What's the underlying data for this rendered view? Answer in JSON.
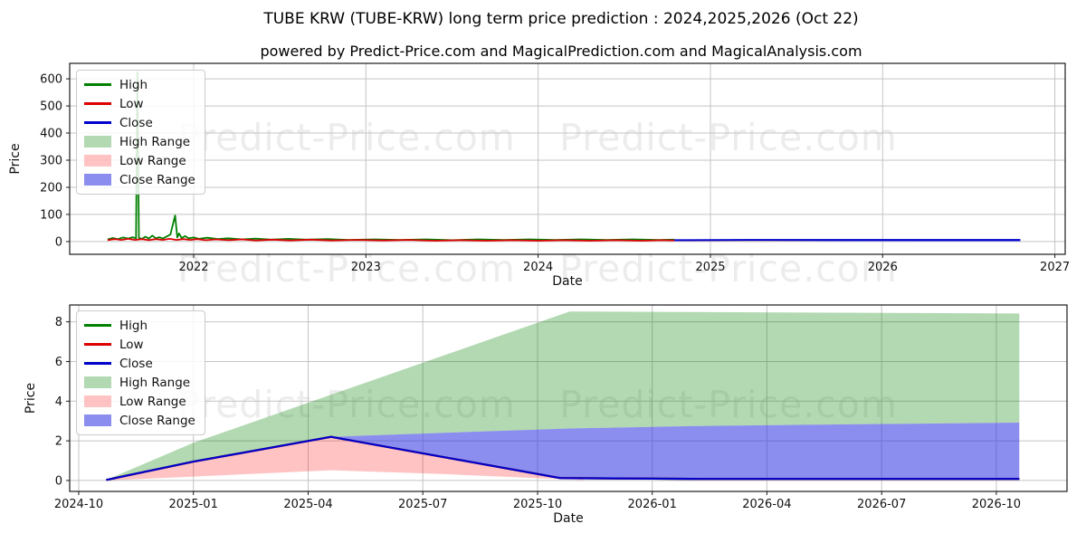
{
  "page": {
    "title": "TUBE KRW (TUBE-KRW) long term price prediction : 2024,2025,2026 (Oct 22)",
    "subtitle": "powered by Predict-Price.com and MagicalPrediction.com and MagicalAnalysis.com"
  },
  "watermark": {
    "text": "Predict-Price.com"
  },
  "colors": {
    "high": "#008000",
    "low": "#dd0000",
    "close": "#0000cd",
    "high_range": "rgba(0,128,0,0.30)",
    "low_range": "rgba(255,40,40,0.28)",
    "close_range": "rgba(45,50,225,0.55)",
    "grid": "#c4c4c4",
    "spine": "#1a1a1a"
  },
  "legend": [
    {
      "label": "High",
      "type": "line",
      "color": "#008000"
    },
    {
      "label": "Low",
      "type": "line",
      "color": "#dd0000"
    },
    {
      "label": "Close",
      "type": "line",
      "color": "#0000cd"
    },
    {
      "label": "High Range",
      "type": "patch",
      "color": "rgba(0,128,0,0.30)"
    },
    {
      "label": "Low Range",
      "type": "patch",
      "color": "rgba(255,40,40,0.28)"
    },
    {
      "label": "Close Range",
      "type": "patch",
      "color": "rgba(45,50,225,0.55)"
    }
  ],
  "chart_data": [
    {
      "type": "line",
      "name": "long-term-history-and-forecast",
      "xlabel": "Date",
      "ylabel": "Price",
      "xlim": [
        2021.28,
        2027.06
      ],
      "ylim": [
        -47,
        657
      ],
      "grid": true,
      "legend_position": "upper-left",
      "xticks": [
        {
          "v": 2022,
          "label": "2022"
        },
        {
          "v": 2023,
          "label": "2023"
        },
        {
          "v": 2024,
          "label": "2024"
        },
        {
          "v": 2025,
          "label": "2025"
        },
        {
          "v": 2026,
          "label": "2026"
        },
        {
          "v": 2027,
          "label": "2027"
        }
      ],
      "yticks": [
        {
          "v": 0,
          "label": "0"
        },
        {
          "v": 100,
          "label": "100"
        },
        {
          "v": 200,
          "label": "200"
        },
        {
          "v": 300,
          "label": "300"
        },
        {
          "v": 400,
          "label": "400"
        },
        {
          "v": 500,
          "label": "500"
        },
        {
          "v": 600,
          "label": "600"
        }
      ],
      "bands": [
        {
          "name": "High Range",
          "color": "rgba(0,128,0,0.30)",
          "upper": [
            [
              2024.81,
              1
            ],
            [
              2025.82,
              8.5
            ],
            [
              2026.8,
              8.4
            ]
          ],
          "lower": [
            [
              2024.81,
              1
            ],
            [
              2025.3,
              2.2
            ],
            [
              2025.78,
              2.6
            ],
            [
              2026.8,
              2.9
            ]
          ]
        },
        {
          "name": "Low Range",
          "color": "rgba(255,40,40,0.28)",
          "upper": [
            [
              2024.81,
              1
            ],
            [
              2025.3,
              2.2
            ],
            [
              2025.8,
              0.1
            ]
          ],
          "lower": [
            [
              2024.81,
              0
            ],
            [
              2025.3,
              0.5
            ],
            [
              2025.8,
              0
            ]
          ]
        },
        {
          "name": "Close Range",
          "color": "rgba(45,50,225,0.55)",
          "upper": [
            [
              2025.3,
              2.2
            ],
            [
              2025.78,
              2.6
            ],
            [
              2026.8,
              2.9
            ]
          ],
          "lower": [
            [
              2025.3,
              2.2
            ],
            [
              2025.8,
              0.1
            ],
            [
              2026.8,
              0.07
            ]
          ]
        }
      ],
      "series": [
        {
          "name": "High",
          "color": "#008000",
          "width": 1.8,
          "points": [
            [
              2021.5,
              8
            ],
            [
              2021.53,
              13
            ],
            [
              2021.56,
              9
            ],
            [
              2021.59,
              15
            ],
            [
              2021.62,
              11
            ],
            [
              2021.645,
              16
            ],
            [
              2021.665,
              12
            ],
            [
              2021.673,
              625
            ],
            [
              2021.682,
              13
            ],
            [
              2021.7,
              10
            ],
            [
              2021.72,
              18
            ],
            [
              2021.74,
              11
            ],
            [
              2021.76,
              22
            ],
            [
              2021.78,
              12
            ],
            [
              2021.8,
              16
            ],
            [
              2021.82,
              11
            ],
            [
              2021.845,
              19
            ],
            [
              2021.865,
              26
            ],
            [
              2021.892,
              96
            ],
            [
              2021.905,
              15
            ],
            [
              2021.915,
              30
            ],
            [
              2021.93,
              13
            ],
            [
              2021.95,
              20
            ],
            [
              2021.97,
              12
            ],
            [
              2022.0,
              15
            ],
            [
              2022.03,
              10
            ],
            [
              2022.08,
              14
            ],
            [
              2022.14,
              9
            ],
            [
              2022.2,
              12
            ],
            [
              2022.28,
              8
            ],
            [
              2022.36,
              11
            ],
            [
              2022.45,
              7
            ],
            [
              2022.55,
              10
            ],
            [
              2022.65,
              7
            ],
            [
              2022.78,
              9
            ],
            [
              2022.9,
              6
            ],
            [
              2023.05,
              8
            ],
            [
              2023.2,
              6
            ],
            [
              2023.35,
              8
            ],
            [
              2023.5,
              5
            ],
            [
              2023.65,
              8
            ],
            [
              2023.8,
              6
            ],
            [
              2023.95,
              8
            ],
            [
              2024.1,
              6
            ],
            [
              2024.25,
              8
            ],
            [
              2024.4,
              6
            ],
            [
              2024.55,
              8
            ],
            [
              2024.7,
              6
            ],
            [
              2024.79,
              7
            ]
          ]
        },
        {
          "name": "Low",
          "color": "#dd0000",
          "width": 1.8,
          "points": [
            [
              2021.5,
              5
            ],
            [
              2021.54,
              9
            ],
            [
              2021.58,
              6
            ],
            [
              2021.62,
              10
            ],
            [
              2021.66,
              6
            ],
            [
              2021.7,
              9
            ],
            [
              2021.74,
              5
            ],
            [
              2021.78,
              9
            ],
            [
              2021.82,
              6
            ],
            [
              2021.86,
              10
            ],
            [
              2021.9,
              6
            ],
            [
              2021.94,
              9
            ],
            [
              2021.98,
              6
            ],
            [
              2022.02,
              9
            ],
            [
              2022.07,
              5
            ],
            [
              2022.13,
              8
            ],
            [
              2022.2,
              5
            ],
            [
              2022.28,
              8
            ],
            [
              2022.36,
              4
            ],
            [
              2022.46,
              7
            ],
            [
              2022.56,
              4
            ],
            [
              2022.68,
              7
            ],
            [
              2022.8,
              4
            ],
            [
              2022.95,
              6
            ],
            [
              2023.1,
              4
            ],
            [
              2023.25,
              6
            ],
            [
              2023.4,
              3
            ],
            [
              2023.55,
              5
            ],
            [
              2023.7,
              3
            ],
            [
              2023.85,
              5
            ],
            [
              2024.0,
              3
            ],
            [
              2024.15,
              5
            ],
            [
              2024.3,
              3
            ],
            [
              2024.45,
              5
            ],
            [
              2024.6,
              3
            ],
            [
              2024.72,
              5
            ],
            [
              2024.79,
              4
            ]
          ]
        },
        {
          "name": "Close",
          "color": "#0000cd",
          "width": 2.0,
          "points": [
            [
              2024.79,
              5
            ],
            [
              2025.2,
              6
            ],
            [
              2026.0,
              6
            ],
            [
              2026.8,
              6
            ]
          ]
        }
      ]
    },
    {
      "type": "line",
      "name": "forecast-detail",
      "xlabel": "Date",
      "ylabel": "Price",
      "xlim": [
        2024.7303,
        2026.904
      ],
      "ylim": [
        -0.55,
        8.85
      ],
      "grid": true,
      "legend_position": "upper-left",
      "xticks": [
        {
          "v": 2024.75,
          "label": "2024-10"
        },
        {
          "v": 2025.0,
          "label": "2025-01"
        },
        {
          "v": 2025.25,
          "label": "2025-04"
        },
        {
          "v": 2025.5,
          "label": "2025-07"
        },
        {
          "v": 2025.75,
          "label": "2025-10"
        },
        {
          "v": 2026.0,
          "label": "2026-01"
        },
        {
          "v": 2026.25,
          "label": "2026-04"
        },
        {
          "v": 2026.5,
          "label": "2026-07"
        },
        {
          "v": 2026.75,
          "label": "2026-10"
        }
      ],
      "yticks": [
        {
          "v": 0,
          "label": "0"
        },
        {
          "v": 2,
          "label": "2"
        },
        {
          "v": 4,
          "label": "4"
        },
        {
          "v": 6,
          "label": "6"
        },
        {
          "v": 8,
          "label": "8"
        }
      ],
      "bands": [
        {
          "name": "High Range",
          "color": "rgba(0,128,0,0.30)",
          "upper": [
            [
              2024.81,
              0.03
            ],
            [
              2025.0,
              1.9
            ],
            [
              2025.82,
              8.52
            ],
            [
              2026.8,
              8.42
            ]
          ],
          "lower": [
            [
              2024.81,
              0.03
            ],
            [
              2025.0,
              0.95
            ],
            [
              2025.3,
              2.2
            ],
            [
              2025.6,
              2.45
            ],
            [
              2025.82,
              2.62
            ],
            [
              2026.1,
              2.75
            ],
            [
              2026.5,
              2.85
            ],
            [
              2026.8,
              2.92
            ]
          ]
        },
        {
          "name": "Low Range",
          "color": "rgba(255,40,40,0.28)",
          "upper": [
            [
              2024.81,
              0.03
            ],
            [
              2025.0,
              0.95
            ],
            [
              2025.3,
              2.2
            ],
            [
              2025.8,
              0.12
            ],
            [
              2025.85,
              0.08
            ]
          ],
          "lower": [
            [
              2024.81,
              0.0
            ],
            [
              2025.0,
              0.2
            ],
            [
              2025.3,
              0.52
            ],
            [
              2025.55,
              0.32
            ],
            [
              2025.85,
              0.02
            ]
          ]
        },
        {
          "name": "Close Range",
          "color": "rgba(45,50,225,0.55)",
          "upper": [
            [
              2025.3,
              2.2
            ],
            [
              2025.6,
              2.45
            ],
            [
              2025.82,
              2.62
            ],
            [
              2026.1,
              2.75
            ],
            [
              2026.5,
              2.85
            ],
            [
              2026.8,
              2.92
            ]
          ],
          "lower": [
            [
              2025.3,
              2.2
            ],
            [
              2025.8,
              0.12
            ],
            [
              2026.1,
              0.05
            ],
            [
              2026.8,
              0.05
            ]
          ]
        }
      ],
      "series": [
        {
          "name": "High",
          "color": "#008000",
          "width": 2.2,
          "points": [
            [
              2024.81,
              0.03
            ],
            [
              2025.0,
              0.95
            ],
            [
              2025.3,
              2.2
            ],
            [
              2025.8,
              0.12
            ],
            [
              2026.1,
              0.08
            ],
            [
              2026.8,
              0.08
            ]
          ]
        },
        {
          "name": "Low",
          "color": "#dd0000",
          "width": 2.2,
          "points": [
            [
              2024.81,
              0.03
            ],
            [
              2025.0,
              0.95
            ],
            [
              2025.3,
              2.2
            ],
            [
              2025.8,
              0.12
            ],
            [
              2026.1,
              0.08
            ],
            [
              2026.8,
              0.08
            ]
          ]
        },
        {
          "name": "Close",
          "color": "#0000cd",
          "width": 2.2,
          "points": [
            [
              2024.81,
              0.03
            ],
            [
              2025.0,
              0.95
            ],
            [
              2025.3,
              2.2
            ],
            [
              2025.8,
              0.12
            ],
            [
              2026.1,
              0.08
            ],
            [
              2026.8,
              0.08
            ]
          ]
        }
      ]
    }
  ]
}
